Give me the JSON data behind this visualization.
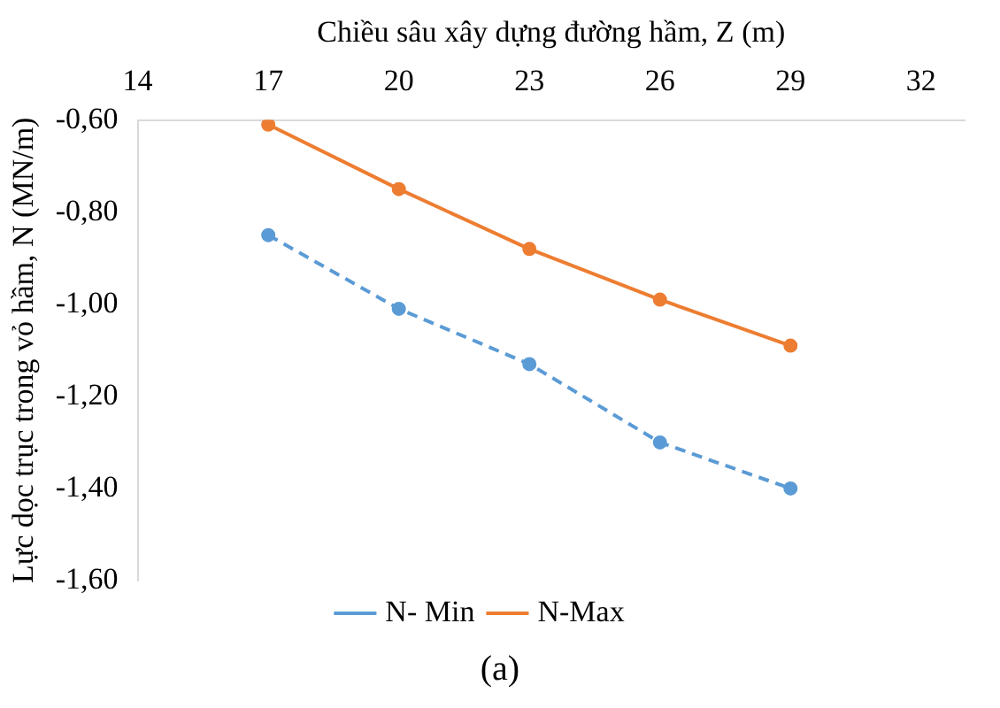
{
  "chart_data": {
    "type": "line",
    "xlabel": "Chiều sâu xây dựng đường hầm, Z (m)",
    "ylabel": "Lực dọc trục trong vỏ hầm, N (MN/m)",
    "x": [
      17,
      20,
      23,
      26,
      29
    ],
    "series": [
      {
        "name": "N- Min",
        "color": "#5b9bd5",
        "values": [
          -0.85,
          -1.01,
          -1.13,
          -1.3,
          -1.4
        ],
        "line_style": "dashed"
      },
      {
        "name": "N-Max",
        "color": "#ed7d31",
        "values": [
          -0.61,
          -0.75,
          -0.88,
          -0.99,
          -1.09
        ],
        "line_style": "solid"
      }
    ],
    "xlim": [
      14,
      33
    ],
    "xticks": [
      14,
      17,
      20,
      23,
      26,
      29,
      32
    ],
    "ylim": [
      -1.6,
      -0.6
    ],
    "yticks": [
      {
        "value": -0.6,
        "label": "-0,60"
      },
      {
        "value": -0.8,
        "label": "-0,80"
      },
      {
        "value": -1.0,
        "label": "-1,00"
      },
      {
        "value": -1.2,
        "label": "-1,20"
      },
      {
        "value": -1.4,
        "label": "-1,40"
      },
      {
        "value": -1.6,
        "label": "-1,60"
      }
    ],
    "grid": false,
    "legend": "bottom",
    "marker": "circle",
    "annotations": [
      "(a)"
    ]
  }
}
